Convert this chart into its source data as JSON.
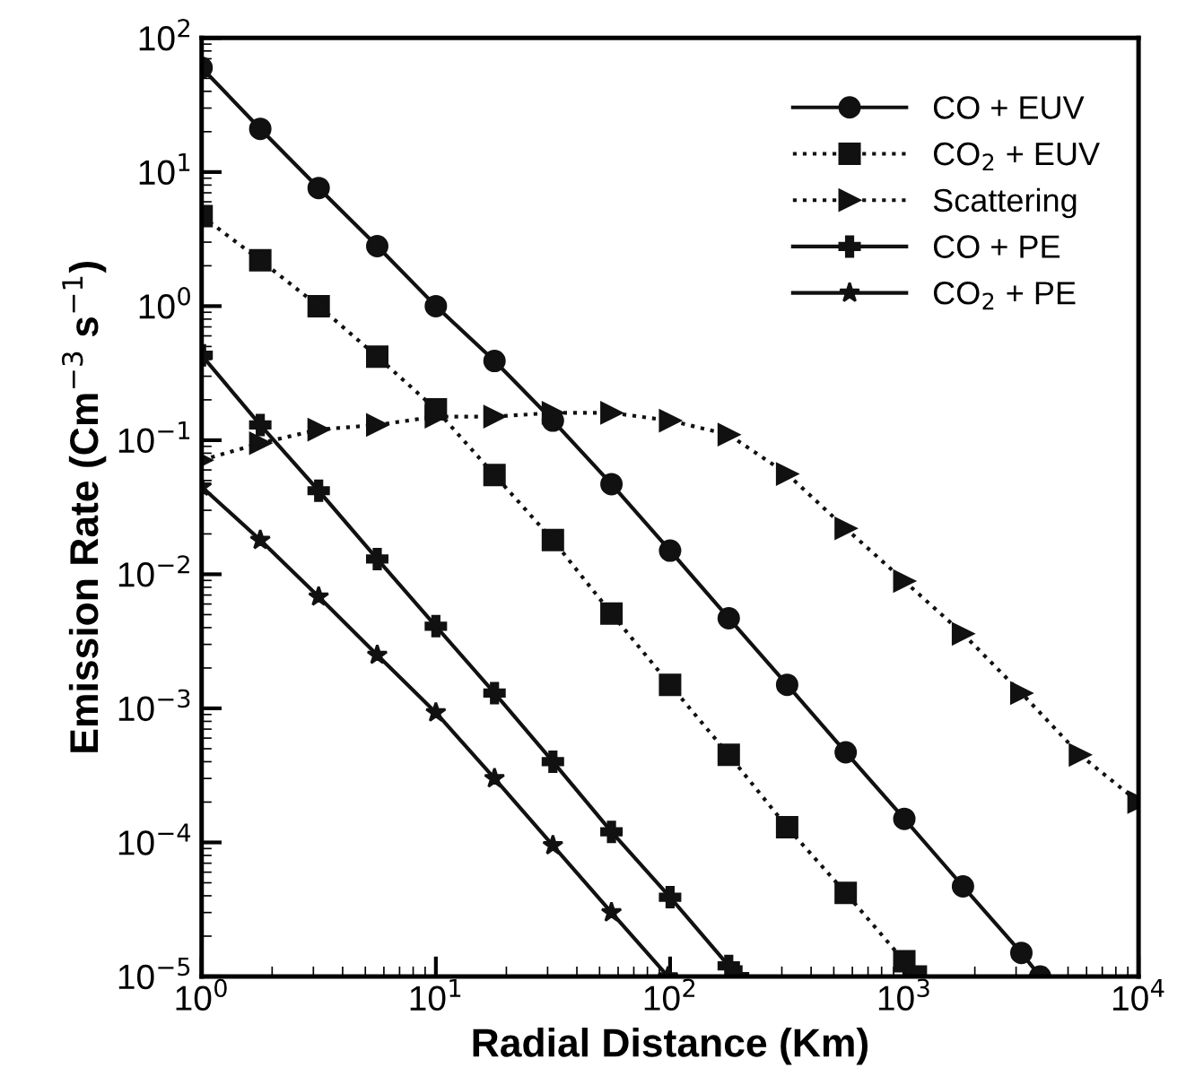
{
  "chart_data": {
    "type": "line",
    "xlabel": "Radial Distance (Km)",
    "ylabel": "Emission Rate (Cm$^{−3}$ s$^{−1}$)",
    "log": "xy",
    "xlim": [
      1,
      10000
    ],
    "ylim": [
      1e-05,
      100
    ],
    "xticks": [
      {
        "value": 1,
        "label": "10$^{0}$"
      },
      {
        "value": 10,
        "label": "10$^{1}$"
      },
      {
        "value": 100,
        "label": "10$^{2}$"
      },
      {
        "value": 1000,
        "label": "10$^{3}$"
      },
      {
        "value": 10000,
        "label": "10$^{4}$"
      }
    ],
    "yticks": [
      {
        "value": 1e-05,
        "label": "10$^{−5}$"
      },
      {
        "value": 0.0001,
        "label": "10$^{−4}$"
      },
      {
        "value": 0.001,
        "label": "10$^{−3}$"
      },
      {
        "value": 0.01,
        "label": "10$^{−2}$"
      },
      {
        "value": 0.1,
        "label": "10$^{−1}$"
      },
      {
        "value": 1,
        "label": "10$^{0}$"
      },
      {
        "value": 10,
        "label": "10$^{1}$"
      },
      {
        "value": 100,
        "label": "10$^{2}$"
      }
    ],
    "grid": false,
    "legend": "top right",
    "series": [
      {
        "name": "CO + EUV",
        "color": "#111111",
        "marker": "circle",
        "line_style": "solid",
        "x": [
          1,
          1.78,
          3.16,
          5.62,
          10,
          17.8,
          31.6,
          56.2,
          100,
          178,
          316,
          562,
          1000,
          1780,
          3160,
          3800
        ],
        "values": [
          60,
          21,
          7.6,
          2.8,
          1.0,
          0.39,
          0.14,
          0.047,
          0.015,
          0.0047,
          0.0015,
          0.00047,
          0.00015,
          4.7e-05,
          1.5e-05,
          1e-05
        ]
      },
      {
        "name": "CO$_{2}$ + EUV",
        "color": "#111111",
        "marker": "square",
        "line_style": "dotted",
        "x": [
          1,
          1.78,
          3.16,
          5.62,
          10,
          17.8,
          31.6,
          56.2,
          100,
          178,
          316,
          562,
          1000,
          1120
        ],
        "values": [
          4.7,
          2.2,
          1.0,
          0.42,
          0.17,
          0.055,
          0.018,
          0.0051,
          0.0015,
          0.00045,
          0.00013,
          4.2e-05,
          1.3e-05,
          1e-05
        ]
      },
      {
        "name": "Scattering",
        "color": "#111111",
        "marker": "triangle",
        "line_style": "dotted",
        "x": [
          1,
          1.78,
          3.16,
          5.62,
          10,
          17.8,
          31.6,
          56.2,
          100,
          178,
          316,
          562,
          1000,
          1780,
          3160,
          5620,
          10000
        ],
        "values": [
          0.071,
          0.095,
          0.12,
          0.13,
          0.15,
          0.15,
          0.16,
          0.16,
          0.14,
          0.11,
          0.056,
          0.022,
          0.0089,
          0.0036,
          0.0013,
          0.00045,
          0.0002
        ]
      },
      {
        "name": "CO + PE",
        "color": "#111111",
        "marker": "cross",
        "line_style": "solid",
        "x": [
          1,
          1.78,
          3.16,
          5.62,
          10,
          17.8,
          31.6,
          56.2,
          100,
          178,
          195
        ],
        "values": [
          0.43,
          0.13,
          0.042,
          0.013,
          0.0041,
          0.0013,
          0.0004,
          0.00012,
          3.9e-05,
          1.2e-05,
          1e-05
        ]
      },
      {
        "name": "CO$_{2}$ + PE",
        "color": "#111111",
        "marker": "star",
        "line_style": "solid",
        "x": [
          1,
          1.78,
          3.16,
          5.62,
          10,
          17.8,
          31.6,
          56.2,
          98
        ],
        "values": [
          0.045,
          0.018,
          0.0068,
          0.0025,
          0.00093,
          0.0003,
          9.5e-05,
          3e-05,
          1e-05
        ]
      }
    ]
  }
}
